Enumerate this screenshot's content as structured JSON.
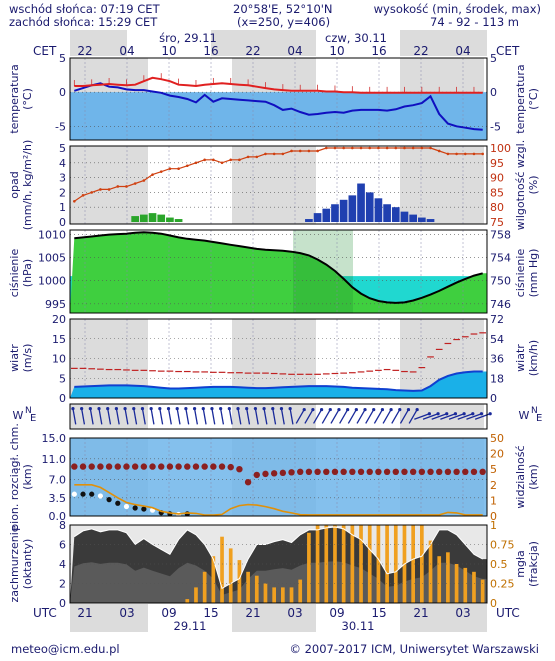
{
  "header": {
    "sunrise": "wschód słońca: 07:19 CET",
    "sunset": "zachód słońca: 15:29 CET",
    "coords": "20°58'E, 52°10'N",
    "grid": "(x=250, y=406)",
    "elevation_label": "wysokość (min, środek, max)",
    "elevation_values": "74 - 92 - 113 m"
  },
  "top_axis": {
    "tz": "CET",
    "day1": "śro, 29.11",
    "day2": "czw, 30.11",
    "hours": [
      "22",
      "04",
      "10",
      "16",
      "22",
      "04",
      "10",
      "16",
      "22",
      "04"
    ]
  },
  "bottom_axis": {
    "tz": "UTC",
    "day1": "29.11",
    "day2": "30.11",
    "hours": [
      "21",
      "03",
      "09",
      "15",
      "21",
      "03",
      "09",
      "15",
      "21",
      "03"
    ]
  },
  "footer": {
    "email": "meteo@icm.edu.pl",
    "copyright": "© 2007-2017 ICM, Uniwersytet Warszawski"
  },
  "panel_labels": {
    "temp_left": [
      "temperatura",
      "(°C)"
    ],
    "temp_right": [
      "temperatura",
      "(°C)"
    ],
    "precip_left": [
      "opad",
      "(mm/h, kg/m²/h)"
    ],
    "precip_right": [
      "wilgotność wzgl.",
      "(%)"
    ],
    "pressure_left": [
      "ciśnienie",
      "(hPa)"
    ],
    "pressure_right": [
      "ciśnienie",
      "(mm Hg)"
    ],
    "wind_left": [
      "wiatr",
      "(m/s)"
    ],
    "wind_right": [
      "wiatr",
      "(km/h)"
    ],
    "vis_left": [
      "pion. rozciągł. chm.",
      "(km)"
    ],
    "vis_right": [
      "widzialność",
      "(km)"
    ],
    "cloud_left": [
      "zachmurzenie",
      "(oktanty)"
    ],
    "cloud_right": [
      "mgła",
      "(frakcja)"
    ]
  },
  "chart_data": [
    {
      "type": "line",
      "title": "temperatura",
      "ylabel": "(°C)",
      "ylim": [
        -7,
        5
      ],
      "yticks": [
        "5",
        "0",
        "-5"
      ],
      "series": [
        {
          "name": "temperatura",
          "color": "#e02020",
          "values": [
            0.9,
            0.9,
            1.0,
            1.1,
            1.2,
            1.1,
            1.0,
            1.1,
            1.6,
            2.1,
            1.9,
            1.6,
            1.1,
            1.0,
            0.9,
            1.1,
            1.2,
            1.3,
            1.2,
            1.1,
            1.0,
            0.8,
            0.6,
            0.4,
            0.3,
            0.2,
            0.2,
            0.2,
            0.2,
            0.1,
            0.1,
            0.0,
            0.0,
            -0.1,
            -0.1,
            -0.1,
            -0.1,
            -0.1,
            -0.1,
            -0.1,
            -0.1,
            -0.1,
            -0.1,
            -0.1,
            -0.1,
            -0.1,
            -0.1,
            -0.1
          ]
        },
        {
          "name": "punkt rosy",
          "color": "#1010c0",
          "values": [
            0.2,
            0.6,
            1.0,
            1.3,
            0.8,
            0.7,
            0.4,
            0.3,
            0.3,
            0.1,
            -0.1,
            -0.5,
            -0.7,
            -1.0,
            -1.5,
            -0.4,
            -1.4,
            -0.9,
            -1.0,
            -1.1,
            -1.2,
            -1.3,
            -1.4,
            -1.9,
            -2.6,
            -2.4,
            -2.9,
            -3.3,
            -3.2,
            -3.0,
            -2.9,
            -3.0,
            -2.7,
            -2.6,
            -2.6,
            -2.6,
            -2.7,
            -2.5,
            -2.1,
            -1.9,
            -1.6,
            -0.6,
            -3.2,
            -4.6,
            -5.0,
            -5.2,
            -5.4,
            -5.5
          ]
        }
      ]
    },
    {
      "type": "bar",
      "title": "opad",
      "ylabel": "(mm/h, kg/m²/h)",
      "ylim": [
        0,
        5
      ],
      "yticks": [
        "5",
        "4",
        "3",
        "2",
        "1",
        "0"
      ],
      "y2lim": [
        75,
        100
      ],
      "y2ticks": [
        "100",
        "95",
        "90",
        "85",
        "80",
        "75"
      ],
      "series": [
        {
          "name": "opad",
          "color": "#2aa52a",
          "values": [
            0,
            0,
            0,
            0,
            0,
            0,
            0,
            0.4,
            0.5,
            0.6,
            0.5,
            0.3,
            0.2,
            0,
            0,
            0,
            0,
            0,
            0,
            0,
            0,
            0,
            0,
            0,
            0,
            0,
            0,
            0.2,
            0.6,
            0.9,
            1.2,
            1.5,
            1.8,
            2.6,
            2.0,
            1.6,
            1.2,
            1.0,
            0.7,
            0.5,
            0.3,
            0.2,
            0,
            0,
            0,
            0,
            0,
            0
          ]
        },
        {
          "name": "wilgotność wzgl.",
          "color": "#d04010",
          "values": [
            82,
            84,
            85,
            86,
            86,
            87,
            87,
            88,
            89,
            91,
            92,
            93,
            93,
            94,
            95,
            96,
            96,
            95,
            96,
            96,
            97,
            97,
            98,
            98,
            98,
            99,
            99,
            99,
            99,
            100,
            100,
            100,
            100,
            100,
            100,
            100,
            100,
            100,
            100,
            100,
            100,
            100,
            99,
            98,
            98,
            98,
            98,
            98
          ]
        }
      ]
    },
    {
      "type": "area",
      "title": "ciśnienie",
      "ylabel": "(hPa)",
      "ylim": [
        993,
        1011
      ],
      "yticks": [
        "1010",
        "1005",
        "1000",
        "995"
      ],
      "y2ticks": [
        "758",
        "754",
        "750",
        "746"
      ],
      "series": [
        {
          "name": "ciśnienie",
          "color": "#000000",
          "values": [
            1009.2,
            1009.4,
            1009.6,
            1009.8,
            1010.0,
            1010.1,
            1010.2,
            1010.4,
            1010.5,
            1010.4,
            1010.2,
            1009.8,
            1009.4,
            1009.1,
            1008.9,
            1008.7,
            1008.4,
            1008.1,
            1007.8,
            1007.5,
            1007.2,
            1006.9,
            1006.7,
            1006.6,
            1006.5,
            1006.3,
            1006.0,
            1005.5,
            1004.6,
            1003.5,
            1002.1,
            1000.4,
            998.6,
            997.2,
            996.2,
            995.6,
            995.3,
            995.2,
            995.3,
            995.7,
            996.3,
            997.0,
            997.8,
            998.7,
            999.6,
            1000.4,
            1001.1,
            1001.6
          ]
        }
      ]
    },
    {
      "type": "line",
      "title": "wiatr",
      "ylabel": "(m/s)",
      "ylim": [
        0,
        20
      ],
      "yticks": [
        "20",
        "15",
        "10",
        "5",
        "0"
      ],
      "y2ticks": [
        "72",
        "54",
        "36",
        "18",
        "0"
      ],
      "series": [
        {
          "name": "porywy",
          "color": "#c02020",
          "values": [
            7.5,
            7.5,
            7.4,
            7.3,
            7.2,
            7.2,
            7.1,
            7.0,
            7.0,
            6.9,
            6.8,
            6.8,
            6.7,
            6.7,
            6.6,
            6.6,
            6.5,
            6.5,
            6.4,
            6.4,
            6.3,
            6.3,
            6.3,
            6.2,
            6.1,
            6.0,
            6.0,
            6.0,
            6.0,
            6.1,
            6.2,
            6.3,
            6.4,
            6.6,
            6.8,
            7.0,
            7.2,
            7.0,
            6.7,
            6.6,
            7.7,
            10.4,
            12.3,
            13.8,
            14.8,
            15.5,
            16.2,
            16.5
          ]
        },
        {
          "name": "prędkość wiatru",
          "color": "#1040d0",
          "values": [
            2.8,
            2.9,
            3.0,
            3.1,
            3.2,
            3.2,
            3.2,
            3.1,
            3.0,
            2.8,
            2.6,
            2.4,
            2.4,
            2.5,
            2.6,
            2.7,
            2.8,
            2.8,
            2.8,
            2.7,
            2.6,
            2.5,
            2.5,
            2.6,
            2.7,
            2.8,
            2.9,
            3.0,
            3.0,
            3.0,
            2.9,
            2.8,
            2.6,
            2.5,
            2.4,
            2.3,
            2.2,
            2.0,
            1.9,
            1.8,
            1.9,
            3.0,
            4.6,
            5.6,
            6.2,
            6.5,
            6.7,
            6.7
          ]
        }
      ]
    },
    {
      "type": "line",
      "title": "pion. rozciągł. chm.",
      "ylabel": "(km)",
      "ylim": [
        0,
        15
      ],
      "yticks": [
        "15.0",
        "11.0",
        "7.0",
        "3.5",
        "0.0"
      ],
      "y2ticks": [
        "50",
        "20",
        "5",
        "2",
        "1",
        "0"
      ],
      "series": [
        {
          "name": "pion. rozciągł. chm.",
          "color": "#8b2020",
          "values": [
            9.5,
            9.5,
            9.5,
            9.5,
            9.5,
            9.5,
            9.5,
            9.5,
            9.5,
            9.5,
            9.5,
            9.5,
            9.5,
            9.5,
            9.5,
            9.5,
            9.5,
            9.5,
            9.4,
            9.0,
            6.5,
            7.9,
            8.1,
            8.2,
            8.3,
            8.4,
            8.5,
            8.5,
            8.5,
            8.5,
            8.5,
            8.5,
            8.5,
            8.5,
            8.5,
            8.5,
            8.5,
            8.5,
            8.5,
            8.5,
            8.5,
            8.5,
            8.5,
            8.5,
            8.5,
            8.5,
            8.5,
            8.5
          ]
        },
        {
          "name": "widzialność",
          "color": "#e0900a",
          "values": [
            6,
            6,
            6,
            5.5,
            4.5,
            3.5,
            2.6,
            2.2,
            1.9,
            1.6,
            0.9,
            0.6,
            0.4,
            0.6,
            0.5,
            0.2,
            0.2,
            0.3,
            1.4,
            2.0,
            2.2,
            2.1,
            1.8,
            1.4,
            0.9,
            0.6,
            0.25,
            0.22,
            0.22,
            0.22,
            0.22,
            0.22,
            0.22,
            0.22,
            0.22,
            0.22,
            0.22,
            0.22,
            0.22,
            0.22,
            0.22,
            0.22,
            0.22,
            0.7,
            0.6,
            0.22,
            0.22,
            0.22
          ]
        }
      ]
    },
    {
      "type": "bar",
      "title": "zachmurzenie",
      "ylabel": "(oktanty)",
      "ylim": [
        0,
        8
      ],
      "yticks": [
        "8",
        "6",
        "4",
        "2",
        "0"
      ],
      "y2lim": [
        0,
        1
      ],
      "y2ticks": [
        "1",
        "0.75",
        "0.5",
        "0.25",
        "0"
      ],
      "series": [
        {
          "name": "mgła",
          "color": "#f0a020",
          "values": [
            0,
            0,
            0,
            0,
            0,
            0,
            0,
            0,
            0,
            0,
            0,
            0,
            0,
            0.05,
            0.2,
            0.4,
            0.6,
            0.85,
            0.7,
            0.55,
            0.4,
            0.35,
            0.25,
            0.2,
            0.2,
            0.2,
            0.3,
            0.9,
            1,
            1,
            1,
            1,
            1,
            1,
            1,
            1,
            1,
            1,
            1,
            1,
            1,
            0.8,
            0.6,
            0.65,
            0.5,
            0.45,
            0.4,
            0.3
          ]
        },
        {
          "name": "zachmurzenie",
          "color": "#e0e0e0",
          "values": [
            6.8,
            7.4,
            7.6,
            7.3,
            7.5,
            7.5,
            7.2,
            6.0,
            6.6,
            6.0,
            5.5,
            5.0,
            6.5,
            7.5,
            7.0,
            6.0,
            4.5,
            1.5,
            2.0,
            2.5,
            4.5,
            6.0,
            6.0,
            6.3,
            6.5,
            6.2,
            7.0,
            7.5,
            7.5,
            7.7,
            7.8,
            7.6,
            7.0,
            6.5,
            5.5,
            4.5,
            3.0,
            3.2,
            4.0,
            4.5,
            4.8,
            6.0,
            7.5,
            7.5,
            7.0,
            6.0,
            5.0,
            4.5
          ]
        }
      ]
    }
  ]
}
